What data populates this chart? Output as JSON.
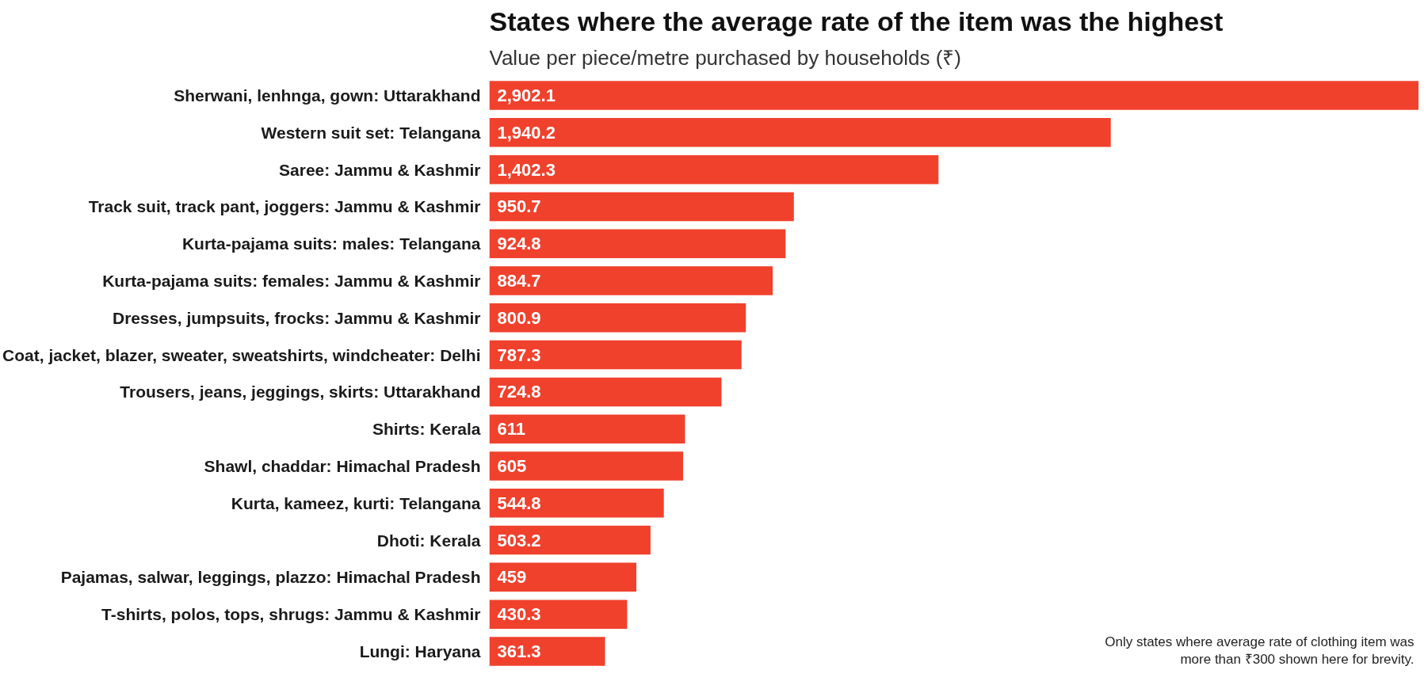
{
  "chart_data": {
    "type": "bar",
    "orientation": "horizontal",
    "title": "States where the average rate of the item was the highest",
    "subtitle": "Value per piece/metre purchased by households (₹)",
    "categories": [
      "Sherwani, lenhnga, gown: Uttarakhand",
      "Western suit set: Telangana",
      "Saree: Jammu & Kashmir",
      "Track suit, track pant, joggers: Jammu & Kashmir",
      "Kurta-pajama suits: males: Telangana",
      "Kurta-pajama suits: females: Jammu & Kashmir",
      "Dresses, jumpsuits, frocks: Jammu & Kashmir",
      "Coat, jacket, blazer, sweater, sweatshirts, windcheater: Delhi",
      "Trousers, jeans, jeggings, skirts: Uttarakhand",
      "Shirts: Kerala",
      "Shawl, chaddar: Himachal Pradesh",
      "Kurta, kameez, kurti: Telangana",
      "Dhoti: Kerala",
      "Pajamas, salwar, leggings, plazzo: Himachal Pradesh",
      "T-shirts, polos, tops, shrugs: Jammu & Kashmir",
      "Lungi: Haryana"
    ],
    "values": [
      2902.1,
      1940.2,
      1402.3,
      950.7,
      924.8,
      884.7,
      800.9,
      787.3,
      724.8,
      611,
      605,
      544.8,
      503.2,
      459,
      430.3,
      361.3
    ],
    "color": "#f0412d",
    "value_labels": [
      "2,902.1",
      "1,940.2",
      "1,402.3",
      "950.7",
      "924.8",
      "884.7",
      "800.9",
      "787.3",
      "724.8",
      "611",
      "605",
      "544.8",
      "503.2",
      "459",
      "430.3",
      "361.3"
    ],
    "annotations": [
      "Only states where average rate of clothing item was\nmore than ₹300 shown here for brevity."
    ]
  }
}
